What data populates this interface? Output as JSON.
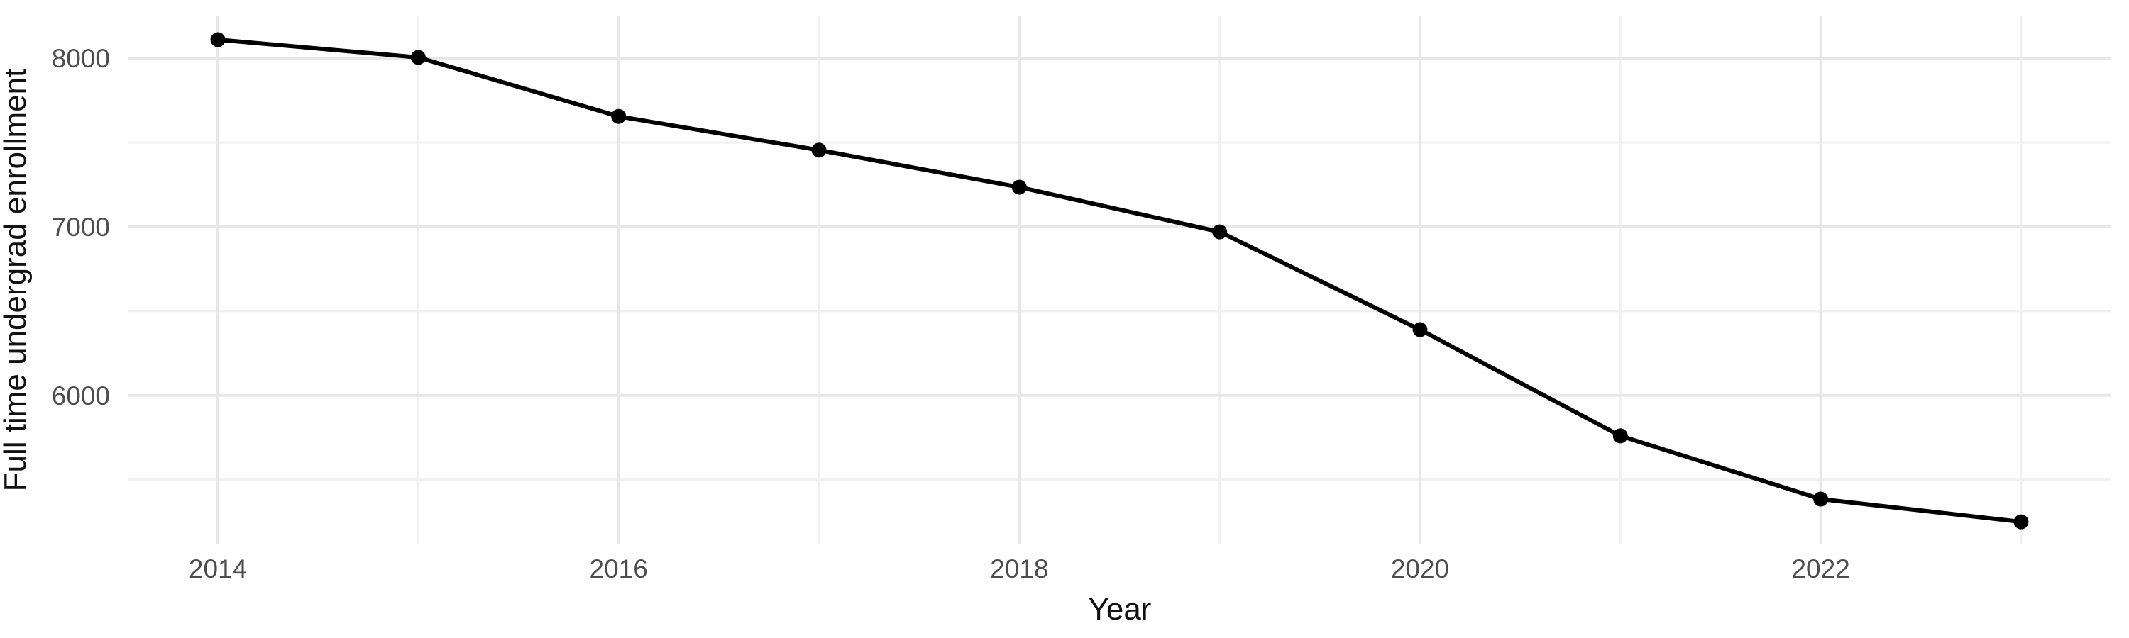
{
  "chart_data": {
    "type": "line",
    "title": "",
    "xlabel": "Year",
    "ylabel": "Full time undergrad enrollment",
    "x": [
      2014,
      2015,
      2016,
      2017,
      2018,
      2019,
      2020,
      2021,
      2022,
      2023
    ],
    "values": [
      8110,
      8005,
      7655,
      7455,
      7235,
      6970,
      6390,
      5760,
      5385,
      5250
    ],
    "x_major_ticks": [
      2014,
      2016,
      2018,
      2020,
      2022
    ],
    "x_minor_ticks": [
      2015,
      2017,
      2019,
      2021,
      2023
    ],
    "y_major_ticks": [
      8000,
      7000,
      6000
    ],
    "y_minor_ticks": [
      7500,
      6500,
      5500
    ],
    "xlim": [
      2013.55,
      2023.45
    ],
    "ylim": [
      5116,
      8253
    ],
    "grid": "major and minor, no axis lines, no tick marks",
    "legend_position": "none",
    "colors": {
      "line": "#000000",
      "points": "#000000",
      "background": "#ffffff",
      "grid_major": "#e7e7e7",
      "grid_minor": "#f0f0f0",
      "tick_labels": "#4d4d4d",
      "axis_titles": "#111111"
    }
  }
}
